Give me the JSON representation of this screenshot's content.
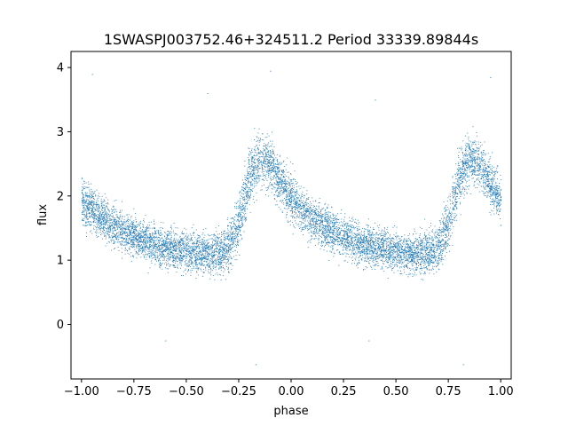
{
  "chart_data": {
    "type": "scatter",
    "title": "1SWASPJ003752.46+324511.2 Period 33339.89844s",
    "xlabel": "phase",
    "ylabel": "flux",
    "xlim": [
      -1.05,
      1.05
    ],
    "ylim": [
      -0.85,
      4.25
    ],
    "x_ticks": [
      -1.0,
      -0.75,
      -0.5,
      -0.25,
      0.0,
      0.25,
      0.5,
      0.75,
      1.0
    ],
    "x_tick_labels": [
      "−1.00",
      "−0.75",
      "−0.50",
      "−0.25",
      "0.00",
      "0.25",
      "0.50",
      "0.75",
      "1.00"
    ],
    "y_ticks": [
      0,
      1,
      2,
      3,
      4
    ],
    "y_tick_labels": [
      "0",
      "1",
      "2",
      "3",
      "4"
    ],
    "grid": false,
    "legend": "none",
    "point_color": "#1f77b4",
    "phase_curve": {
      "phase": [
        0.0,
        0.05,
        0.1,
        0.15,
        0.2,
        0.25,
        0.3,
        0.35,
        0.4,
        0.45,
        0.5,
        0.55,
        0.6,
        0.65,
        0.7,
        0.75,
        0.8,
        0.85,
        0.9,
        0.95,
        1.0
      ],
      "median_flux": [
        1.95,
        1.8,
        1.65,
        1.55,
        1.45,
        1.38,
        1.3,
        1.25,
        1.2,
        1.18,
        1.15,
        1.12,
        1.1,
        1.12,
        1.2,
        1.6,
        2.3,
        2.6,
        2.5,
        2.2,
        1.95
      ],
      "scatter_sigma": [
        0.3,
        0.28,
        0.27,
        0.26,
        0.26,
        0.25,
        0.25,
        0.25,
        0.25,
        0.25,
        0.25,
        0.25,
        0.25,
        0.26,
        0.3,
        0.35,
        0.35,
        0.33,
        0.32,
        0.3,
        0.3
      ]
    },
    "outliers": [
      {
        "x": -0.6,
        "y": -0.25
      },
      {
        "x": 0.37,
        "y": -0.25
      },
      {
        "x": -0.17,
        "y": -0.62
      },
      {
        "x": 0.82,
        "y": -0.62
      },
      {
        "x": -0.95,
        "y": 3.9
      },
      {
        "x": -0.1,
        "y": 3.95
      },
      {
        "x": 0.95,
        "y": 3.85
      },
      {
        "x": 0.4,
        "y": 3.5
      },
      {
        "x": -0.4,
        "y": 3.6
      }
    ]
  }
}
